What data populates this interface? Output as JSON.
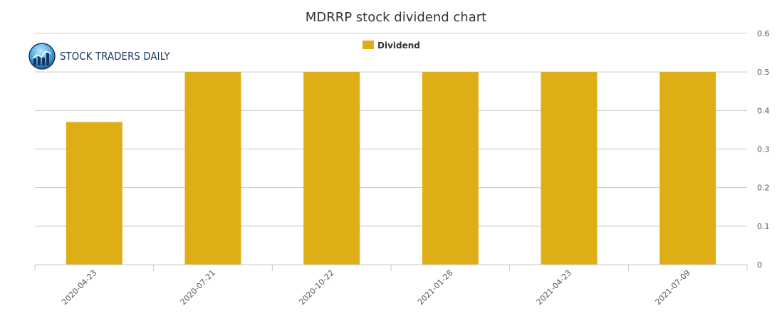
{
  "brand": {
    "name": "STOCK TRADERS DAILY"
  },
  "chart_data": {
    "type": "bar",
    "title": "MDRRP stock dividend chart",
    "categories": [
      "2020-04-23",
      "2020-07-21",
      "2020-10-22",
      "2021-01-28",
      "2021-04-23",
      "2021-07-09"
    ],
    "series": [
      {
        "name": "Dividend",
        "values": [
          0.37,
          0.5,
          0.5,
          0.5,
          0.5,
          0.5
        ],
        "color": "#dfae16"
      }
    ],
    "ylim": [
      0,
      0.6
    ],
    "yticks": [
      0,
      0.1,
      0.2,
      0.3,
      0.4,
      0.5,
      0.6
    ],
    "ytick_labels": [
      "0",
      "0.1",
      "0.2",
      "0.3",
      "0.4",
      "0.5",
      "0.6"
    ],
    "y_axis_side": "right",
    "grid": true,
    "legend": "top-center",
    "colors": {
      "grid": "#c8c8c8",
      "text": "#333333",
      "tick_text": "#555555"
    }
  }
}
